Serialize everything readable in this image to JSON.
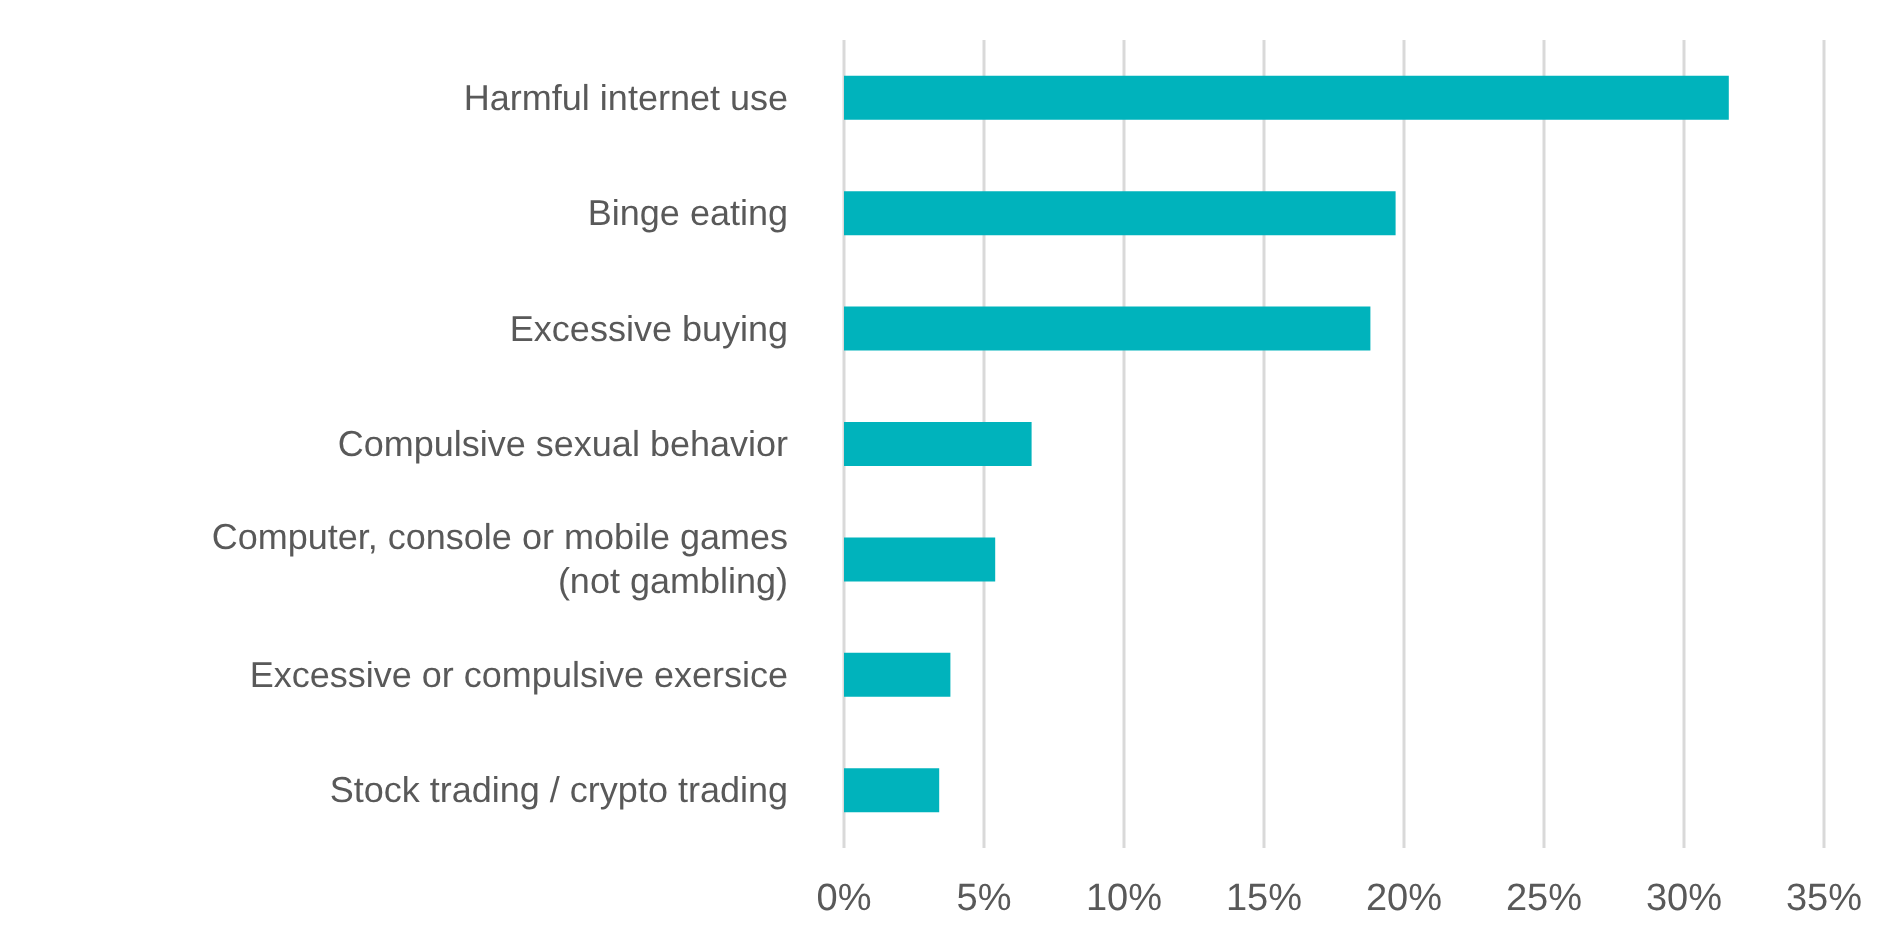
{
  "chart_data": {
    "type": "bar",
    "orientation": "horizontal",
    "grid": "x",
    "color": "#00b3bc",
    "categories": [
      "Harmful internet use",
      "Binge eating",
      "Excessive buying",
      "Compulsive sexual behavior",
      "Computer, console or mobile games\n(not gambling)",
      "Excessive or compulsive exersice",
      "Stock trading / crypto trading"
    ],
    "values": [
      31.6,
      19.7,
      18.8,
      6.7,
      5.4,
      3.8,
      3.4
    ],
    "xlim": [
      0,
      35
    ],
    "xticks": [
      {
        "value": 0,
        "label": "0%"
      },
      {
        "value": 5,
        "label": "5%"
      },
      {
        "value": 10,
        "label": "10%"
      },
      {
        "value": 15,
        "label": "15%"
      },
      {
        "value": 20,
        "label": "20%"
      },
      {
        "value": 25,
        "label": "25%"
      },
      {
        "value": 30,
        "label": "30%"
      },
      {
        "value": 35,
        "label": "35%"
      }
    ]
  }
}
